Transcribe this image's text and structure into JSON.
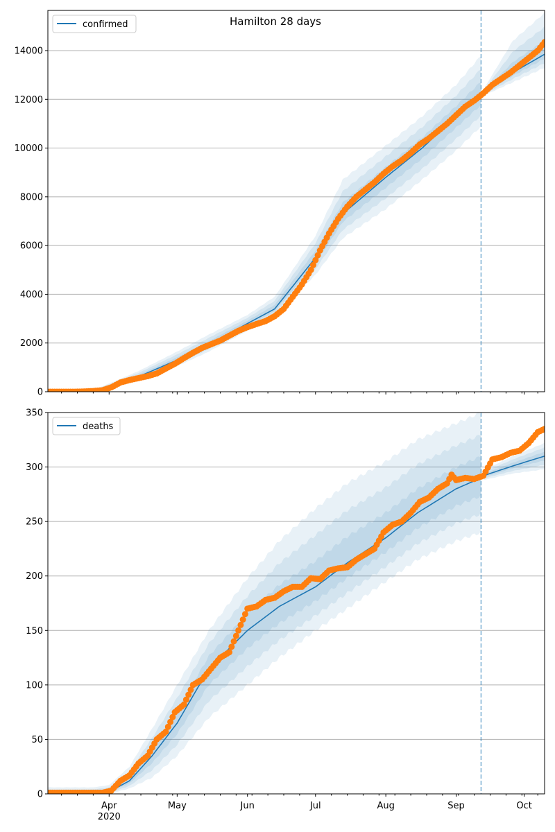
{
  "chart_data": [
    {
      "type": "line",
      "title": "Hamilton 28 days",
      "legend": {
        "label": "confirmed",
        "placement": "top-left"
      },
      "x_unit": "days since 2020-03-05",
      "xlim": [
        0,
        219
      ],
      "ylim": [
        0,
        15650
      ],
      "yticks": [
        0,
        2000,
        4000,
        6000,
        8000,
        10000,
        12000,
        14000
      ],
      "grid": "y",
      "forecast_start_day": 191,
      "median": {
        "x": [
          0,
          20,
          30,
          40,
          57,
          70,
          88,
          100,
          118,
          130,
          149,
          165,
          180,
          191,
          192,
          205,
          219
        ],
        "y": [
          0,
          30,
          300,
          620,
          1300,
          1900,
          2800,
          3400,
          5500,
          7300,
          8800,
          10000,
          11300,
          12200,
          12250,
          13100,
          13850
        ]
      },
      "band_outer": {
        "x": [
          0,
          20,
          30,
          40,
          57,
          70,
          88,
          100,
          118,
          130,
          149,
          165,
          180,
          191,
          192,
          205,
          219
        ],
        "lower": [
          0,
          10,
          200,
          450,
          1050,
          1600,
          2500,
          3100,
          4800,
          6300,
          7500,
          8700,
          9900,
          10900,
          12150,
          12700,
          13300
        ],
        "upper": [
          100,
          80,
          450,
          850,
          1650,
          2300,
          3150,
          3900,
          6400,
          8700,
          10100,
          11300,
          12600,
          13800,
          12400,
          14400,
          15550
        ]
      },
      "band_levels": [
        1.0,
        0.66,
        0.33
      ],
      "observed": {
        "x": [
          0,
          4,
          8,
          12,
          16,
          20,
          24,
          28,
          32,
          36,
          40,
          44,
          48,
          52,
          56,
          60,
          64,
          68,
          72,
          76,
          80,
          84,
          88,
          92,
          96,
          100,
          104,
          108,
          112,
          116,
          120,
          124,
          128,
          132,
          136,
          140,
          144,
          148,
          152,
          156,
          160,
          164,
          168,
          172,
          176,
          180,
          184,
          188,
          192,
          196,
          200,
          204,
          208,
          212,
          216,
          219
        ],
        "y": [
          0,
          0,
          0,
          0,
          10,
          30,
          60,
          180,
          380,
          480,
          560,
          640,
          750,
          950,
          1150,
          1380,
          1600,
          1800,
          1950,
          2100,
          2300,
          2500,
          2650,
          2780,
          2900,
          3100,
          3400,
          3900,
          4400,
          5000,
          5800,
          6500,
          7100,
          7600,
          8000,
          8300,
          8600,
          8950,
          9250,
          9500,
          9800,
          10150,
          10400,
          10700,
          11000,
          11350,
          11700,
          11950,
          12250,
          12600,
          12850,
          13100,
          13400,
          13700,
          14000,
          14350
        ]
      }
    },
    {
      "type": "line",
      "legend": {
        "label": "deaths",
        "placement": "top-left"
      },
      "x_unit": "days since 2020-03-05",
      "xlim": [
        0,
        219
      ],
      "ylim": [
        0,
        350
      ],
      "yticks": [
        0,
        50,
        100,
        150,
        200,
        250,
        300,
        350
      ],
      "grid": "y",
      "forecast_start_day": 191,
      "median": {
        "x": [
          0,
          20,
          27,
          36,
          46,
          57,
          71,
          88,
          102,
          118,
          132,
          149,
          163,
          180,
          191,
          192,
          205,
          219
        ],
        "y": [
          0,
          0.5,
          2,
          12,
          35,
          65,
          115,
          150,
          172,
          190,
          212,
          235,
          258,
          280,
          290,
          292,
          301,
          310
        ]
      },
      "band_outer": {
        "x": [
          0,
          20,
          27,
          36,
          46,
          57,
          71,
          88,
          102,
          118,
          132,
          149,
          163,
          180,
          191,
          192,
          205,
          219
        ],
        "lower": [
          0,
          0,
          0,
          5,
          15,
          35,
          70,
          100,
          125,
          150,
          170,
          195,
          215,
          232,
          240,
          288,
          294,
          298
        ],
        "upper": [
          6,
          6,
          8,
          25,
          60,
          100,
          150,
          198,
          232,
          262,
          285,
          305,
          325,
          340,
          350,
          297,
          310,
          322
        ]
      },
      "band_levels": [
        1.0,
        0.66,
        0.33
      ],
      "observed": {
        "x": [
          0,
          4,
          8,
          12,
          16,
          20,
          24,
          28,
          32,
          36,
          40,
          44,
          48,
          52,
          56,
          60,
          64,
          68,
          72,
          76,
          80,
          84,
          88,
          92,
          96,
          100,
          104,
          108,
          112,
          116,
          120,
          124,
          128,
          132,
          136,
          140,
          144,
          148,
          152,
          156,
          160,
          164,
          168,
          172,
          176,
          178,
          180,
          184,
          188,
          192,
          196,
          200,
          204,
          208,
          212,
          216,
          219
        ],
        "y": [
          1,
          1,
          1,
          1,
          1,
          1,
          1,
          3,
          12,
          17,
          28,
          35,
          50,
          57,
          75,
          82,
          100,
          105,
          115,
          125,
          130,
          150,
          170,
          172,
          178,
          180,
          186,
          190,
          190,
          198,
          197,
          205,
          207,
          208,
          215,
          220,
          225,
          240,
          247,
          250,
          258,
          268,
          272,
          280,
          285,
          293,
          288,
          290,
          289,
          292,
          307,
          309,
          313,
          315,
          322,
          332,
          335
        ]
      }
    }
  ],
  "x_axis": {
    "months": [
      {
        "label": "Apr",
        "day": 27,
        "sub": "2020"
      },
      {
        "label": "May",
        "day": 57
      },
      {
        "label": "Jun",
        "day": 88
      },
      {
        "label": "Jul",
        "day": 118
      },
      {
        "label": "Aug",
        "day": 149
      },
      {
        "label": "Sep",
        "day": 180
      },
      {
        "label": "Oct",
        "day": 210
      }
    ],
    "minor_tick_days": [
      6,
      13,
      20,
      34,
      41,
      48,
      55,
      62,
      69,
      76,
      83,
      90,
      97,
      104,
      111,
      125,
      132,
      139,
      146,
      153,
      160,
      167,
      174,
      181,
      188,
      195,
      202,
      209,
      216
    ]
  },
  "colors": {
    "line": "#1f77b4",
    "observed": "#ff7f0e",
    "grid": "#b0b0b0"
  }
}
